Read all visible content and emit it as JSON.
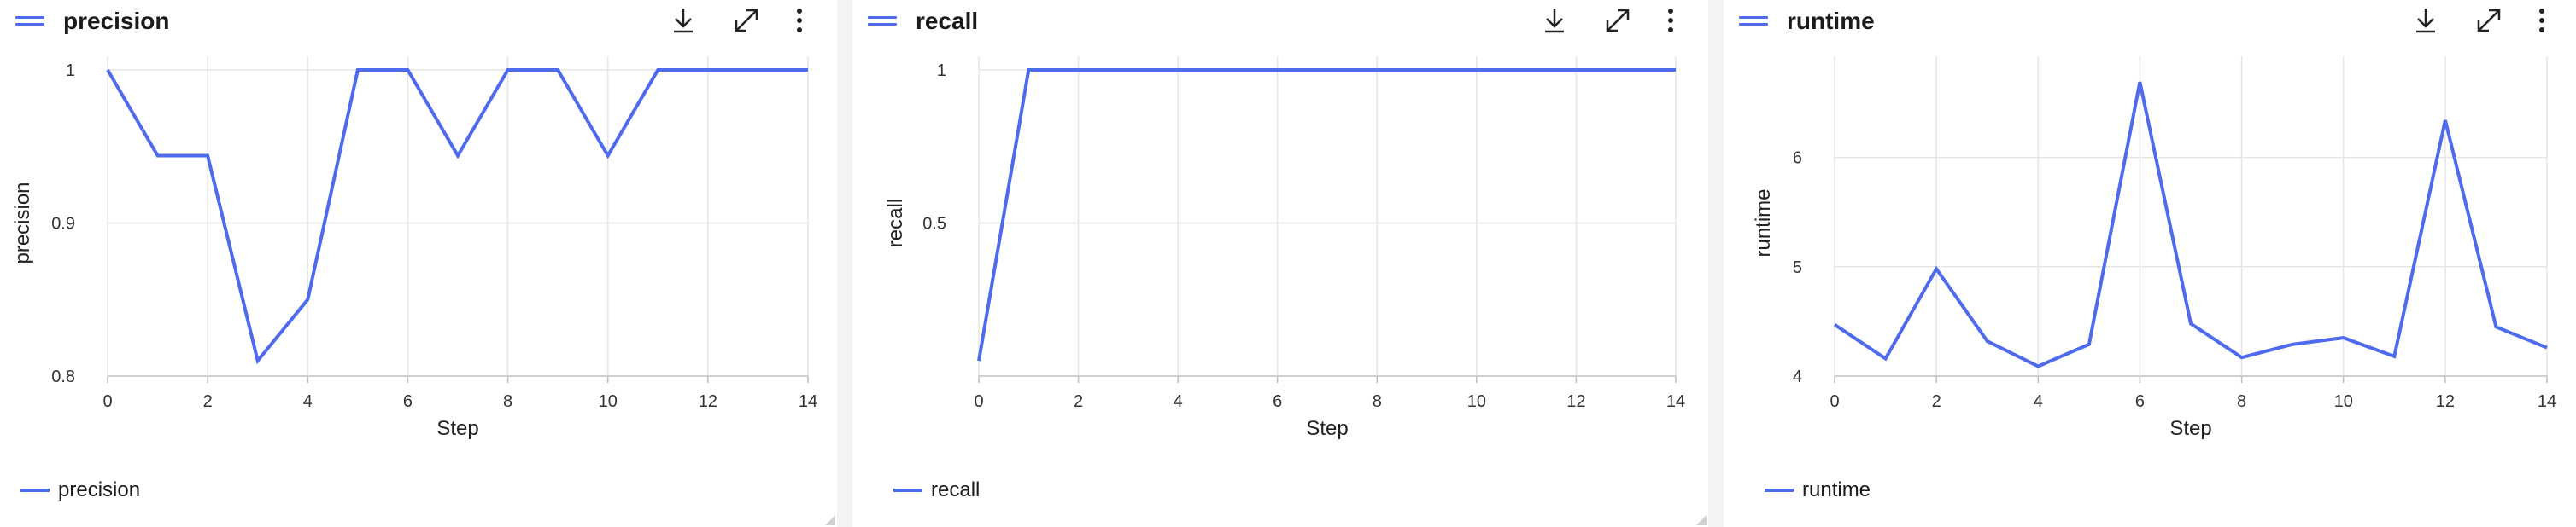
{
  "colors": {
    "series": "#4f6bed",
    "grid": "#e6e6e6",
    "axis_text": "#333333"
  },
  "panels": [
    {
      "title": "precision",
      "legend_label": "precision",
      "icons": [
        "hamburger-icon",
        "download-icon",
        "expand-icon",
        "more-vertical-icon"
      ]
    },
    {
      "title": "recall",
      "legend_label": "recall",
      "icons": [
        "hamburger-icon",
        "download-icon",
        "expand-icon",
        "more-vertical-icon"
      ]
    },
    {
      "title": "runtime",
      "legend_label": "runtime",
      "icons": [
        "hamburger-icon",
        "download-icon",
        "expand-icon",
        "more-vertical-icon"
      ]
    }
  ],
  "chart_data": [
    {
      "type": "line",
      "xlabel": "Step",
      "ylabel": "precision",
      "xlim": [
        0,
        14
      ],
      "ylim": [
        0.8,
        1.0
      ],
      "xticks": [
        0,
        2,
        4,
        6,
        8,
        10,
        12,
        14
      ],
      "yticks": [
        0.8,
        0.9,
        1.0
      ],
      "ytick_labels": [
        "0.8",
        "0.9",
        "1"
      ],
      "grid": true,
      "legend": "bottom-left",
      "series": [
        {
          "name": "precision",
          "x": [
            0,
            1,
            2,
            3,
            4,
            5,
            6,
            7,
            8,
            9,
            10,
            11,
            12,
            13,
            14
          ],
          "values": [
            1.0,
            0.944,
            0.944,
            0.81,
            0.85,
            1.0,
            1.0,
            0.944,
            1.0,
            1.0,
            0.944,
            1.0,
            1.0,
            1.0,
            1.0
          ]
        }
      ]
    },
    {
      "type": "line",
      "xlabel": "Step",
      "ylabel": "recall",
      "xlim": [
        0,
        14
      ],
      "ylim": [
        0.0,
        1.0
      ],
      "xticks": [
        0,
        2,
        4,
        6,
        8,
        10,
        12,
        14
      ],
      "yticks": [
        0.5,
        1.0
      ],
      "ytick_labels": [
        "0.5",
        "1"
      ],
      "grid": true,
      "legend": "bottom-left",
      "series": [
        {
          "name": "recall",
          "x": [
            0,
            1,
            2,
            3,
            4,
            5,
            6,
            7,
            8,
            9,
            10,
            11,
            12,
            13,
            14
          ],
          "values": [
            0.05,
            1.0,
            1.0,
            1.0,
            1.0,
            1.0,
            1.0,
            1.0,
            1.0,
            1.0,
            1.0,
            1.0,
            1.0,
            1.0,
            1.0
          ]
        }
      ]
    },
    {
      "type": "line",
      "xlabel": "Step",
      "ylabel": "runtime",
      "xlim": [
        0,
        14
      ],
      "ylim": [
        4.0,
        6.8
      ],
      "xticks": [
        0,
        2,
        4,
        6,
        8,
        10,
        12,
        14
      ],
      "yticks": [
        4,
        5,
        6
      ],
      "ytick_labels": [
        "4",
        "5",
        "6"
      ],
      "grid": true,
      "legend": "bottom-left",
      "series": [
        {
          "name": "runtime",
          "x": [
            0,
            1,
            2,
            3,
            4,
            5,
            6,
            7,
            8,
            9,
            10,
            11,
            12,
            13,
            14
          ],
          "values": [
            4.47,
            4.16,
            4.98,
            4.32,
            4.09,
            4.29,
            6.69,
            4.48,
            4.17,
            4.29,
            4.35,
            4.18,
            6.34,
            4.45,
            4.26
          ]
        }
      ]
    }
  ]
}
